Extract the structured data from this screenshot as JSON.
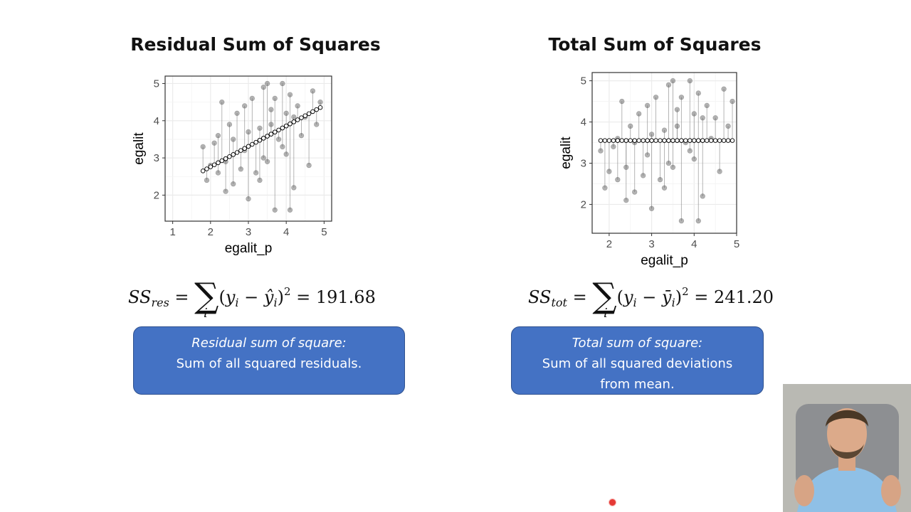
{
  "slide": {
    "left_title": "Residual Sum of Squares",
    "right_title": "Total Sum of Squares"
  },
  "formulas": {
    "res": {
      "lhs": "SS",
      "lhs_sub": "res",
      "sum_index": "i",
      "open": "(",
      "term": "y",
      "term_sub": "i",
      "minus": " − ",
      "estimate": "ŷ",
      "estimate_sub": "i",
      "close": ")",
      "power": "2",
      "equals": " = ",
      "value": "191.68"
    },
    "tot": {
      "lhs": "SS",
      "lhs_sub": "tot",
      "sum_index": "i",
      "open": "(",
      "term": "y",
      "term_sub": "i",
      "minus": " − ",
      "estimate": "ȳ",
      "estimate_sub": "i",
      "close": ")",
      "power": "2",
      "equals": " = ",
      "value": "241.20"
    }
  },
  "boxes": {
    "res": {
      "heading": "Residual sum of square:",
      "line1": "Sum of all squared residuals.",
      "line2": ""
    },
    "tot": {
      "heading": "Total sum of square:",
      "line1": "Sum of all squared deviations",
      "line2": "from mean."
    }
  },
  "chart_data": [
    {
      "type": "scatter",
      "title": "Residual Sum of Squares",
      "xlabel": "egalit_p",
      "ylabel": "egalit",
      "xlim": [
        0.8,
        5.2
      ],
      "ylim": [
        1.3,
        5.2
      ],
      "xticks": [
        1,
        2,
        3,
        4,
        5
      ],
      "yticks": [
        2,
        3,
        4,
        5
      ],
      "grid": true,
      "fitted_line": {
        "intercept": 1.66,
        "slope": 0.55,
        "x_range": [
          1.8,
          4.9
        ]
      },
      "segments": "vertical lines from each observed point to its fitted value",
      "points": [
        [
          1.8,
          3.3
        ],
        [
          1.9,
          2.4
        ],
        [
          2.0,
          2.8
        ],
        [
          2.1,
          3.4
        ],
        [
          2.2,
          3.6
        ],
        [
          2.3,
          4.5
        ],
        [
          2.4,
          2.1
        ],
        [
          2.5,
          3.9
        ],
        [
          2.6,
          2.3
        ],
        [
          2.7,
          4.2
        ],
        [
          2.8,
          2.7
        ],
        [
          2.9,
          3.2
        ],
        [
          3.0,
          1.9
        ],
        [
          3.1,
          4.6
        ],
        [
          3.2,
          2.6
        ],
        [
          3.3,
          3.8
        ],
        [
          3.4,
          4.9
        ],
        [
          3.5,
          2.9
        ],
        [
          3.6,
          4.3
        ],
        [
          3.7,
          1.6
        ],
        [
          3.8,
          3.5
        ],
        [
          3.9,
          5.0
        ],
        [
          4.0,
          3.1
        ],
        [
          4.1,
          4.7
        ],
        [
          4.2,
          2.2
        ],
        [
          4.3,
          4.4
        ],
        [
          4.4,
          3.6
        ],
        [
          4.5,
          4.1
        ],
        [
          4.6,
          2.8
        ],
        [
          4.7,
          4.8
        ],
        [
          4.8,
          3.9
        ],
        [
          4.9,
          4.5
        ],
        [
          2.6,
          3.5
        ],
        [
          3.0,
          3.7
        ],
        [
          3.3,
          2.4
        ],
        [
          3.6,
          3.9
        ],
        [
          3.9,
          3.3
        ],
        [
          4.2,
          4.1
        ],
        [
          2.4,
          2.9
        ],
        [
          3.7,
          4.6
        ],
        [
          4.1,
          1.6
        ],
        [
          3.5,
          5.0
        ],
        [
          2.9,
          4.4
        ],
        [
          3.4,
          3.0
        ],
        [
          4.0,
          4.2
        ],
        [
          2.2,
          2.6
        ]
      ]
    },
    {
      "type": "scatter",
      "title": "Total Sum of Squares",
      "xlabel": "egalit_p",
      "ylabel": "egalit",
      "xlim": [
        1.6,
        5.0
      ],
      "ylim": [
        1.3,
        5.2
      ],
      "xticks": [
        2,
        3,
        4,
        5
      ],
      "yticks": [
        2,
        3,
        4,
        5
      ],
      "grid": true,
      "fitted_line": {
        "intercept": 3.55,
        "slope": 0.0,
        "x_range": [
          1.8,
          4.9
        ]
      },
      "segments": "vertical lines from each observed point to the mean",
      "points": [
        [
          1.8,
          3.3
        ],
        [
          1.9,
          2.4
        ],
        [
          2.0,
          2.8
        ],
        [
          2.1,
          3.4
        ],
        [
          2.2,
          3.6
        ],
        [
          2.3,
          4.5
        ],
        [
          2.4,
          2.1
        ],
        [
          2.5,
          3.9
        ],
        [
          2.6,
          2.3
        ],
        [
          2.7,
          4.2
        ],
        [
          2.8,
          2.7
        ],
        [
          2.9,
          3.2
        ],
        [
          3.0,
          1.9
        ],
        [
          3.1,
          4.6
        ],
        [
          3.2,
          2.6
        ],
        [
          3.3,
          3.8
        ],
        [
          3.4,
          4.9
        ],
        [
          3.5,
          2.9
        ],
        [
          3.6,
          4.3
        ],
        [
          3.7,
          1.6
        ],
        [
          3.8,
          3.5
        ],
        [
          3.9,
          5.0
        ],
        [
          4.0,
          3.1
        ],
        [
          4.1,
          4.7
        ],
        [
          4.2,
          2.2
        ],
        [
          4.3,
          4.4
        ],
        [
          4.4,
          3.6
        ],
        [
          4.5,
          4.1
        ],
        [
          4.6,
          2.8
        ],
        [
          4.7,
          4.8
        ],
        [
          4.8,
          3.9
        ],
        [
          4.9,
          4.5
        ],
        [
          2.6,
          3.5
        ],
        [
          3.0,
          3.7
        ],
        [
          3.3,
          2.4
        ],
        [
          3.6,
          3.9
        ],
        [
          3.9,
          3.3
        ],
        [
          4.2,
          4.1
        ],
        [
          2.4,
          2.9
        ],
        [
          3.7,
          4.6
        ],
        [
          4.1,
          1.6
        ],
        [
          3.5,
          5.0
        ],
        [
          2.9,
          4.4
        ],
        [
          3.4,
          3.0
        ],
        [
          4.0,
          4.2
        ],
        [
          2.2,
          2.6
        ]
      ]
    }
  ]
}
